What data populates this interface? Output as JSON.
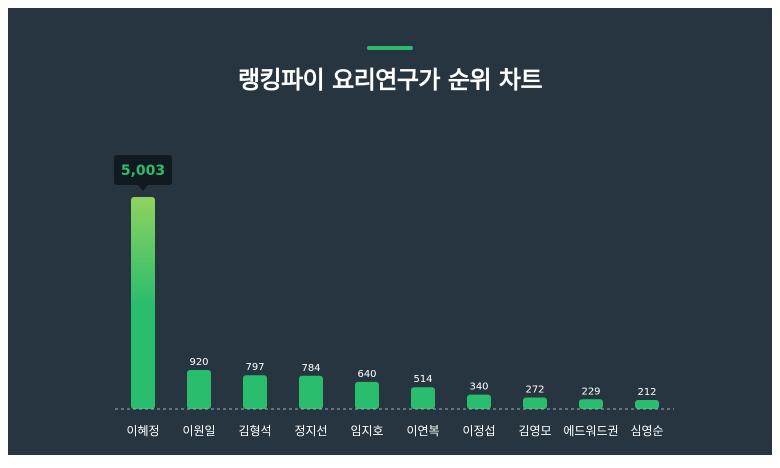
{
  "title": "랭킹파이 요리연구가 순위 차트",
  "colors": {
    "background": "#263540",
    "accent": "#2bbd6e",
    "bar_top_highlight": "#8fd35f",
    "tooltip_bg": "#101a20",
    "tooltip_text": "#2bbd6e",
    "label_text": "#ffffff"
  },
  "chart_data": {
    "type": "bar",
    "title": "랭킹파이 요리연구가 순위 차트",
    "xlabel": "",
    "ylabel": "",
    "grid": false,
    "categories": [
      "이혜정",
      "이원일",
      "김형석",
      "정지선",
      "임지호",
      "이연복",
      "이정섭",
      "김영모",
      "에드워드권",
      "심영순"
    ],
    "values": [
      5003,
      920,
      797,
      784,
      640,
      514,
      340,
      272,
      229,
      212
    ],
    "value_labels": [
      "5,003",
      "920",
      "797",
      "784",
      "640",
      "514",
      "340",
      "272",
      "229",
      "212"
    ],
    "highlight": {
      "category": "이혜정",
      "label": "5,003"
    },
    "ylim": [
      0,
      5003
    ]
  }
}
